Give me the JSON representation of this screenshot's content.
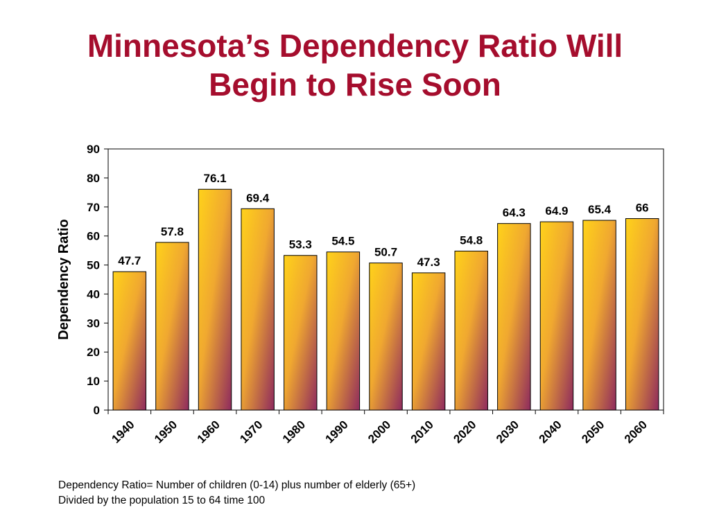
{
  "title": {
    "line1": "Minnesota’s Dependency Ratio Will",
    "line2": "Begin to Rise Soon"
  },
  "colors": {
    "title": "#a50d2d",
    "bar_top": "#ffd21a",
    "bar_bottom": "#8e2a5e"
  },
  "chart_data": {
    "type": "bar",
    "categories": [
      "1940",
      "1950",
      "1960",
      "1970",
      "1980",
      "1990",
      "2000",
      "2010",
      "2020",
      "2030",
      "2040",
      "2050",
      "2060"
    ],
    "values": [
      47.7,
      57.8,
      76.1,
      69.4,
      53.3,
      54.5,
      50.7,
      47.3,
      54.8,
      64.3,
      64.9,
      65.4,
      66
    ],
    "value_labels": [
      "47.7",
      "57.8",
      "76.1",
      "69.4",
      "53.3",
      "54.5",
      "50.7",
      "47.3",
      "54.8",
      "64.3",
      "64.9",
      "65.4",
      "66"
    ],
    "ylabel": "Dependency Ratio",
    "xlabel": "",
    "ylim": [
      0,
      90
    ],
    "yticks": [
      0,
      10,
      20,
      30,
      40,
      50,
      60,
      70,
      80,
      90
    ],
    "grid": false,
    "legend": "none"
  },
  "footnote": {
    "line1": "Dependency Ratio= Number of children (0-14) plus number of elderly (65+)",
    "line2": "Divided by the population 15 to 64 time 100"
  }
}
